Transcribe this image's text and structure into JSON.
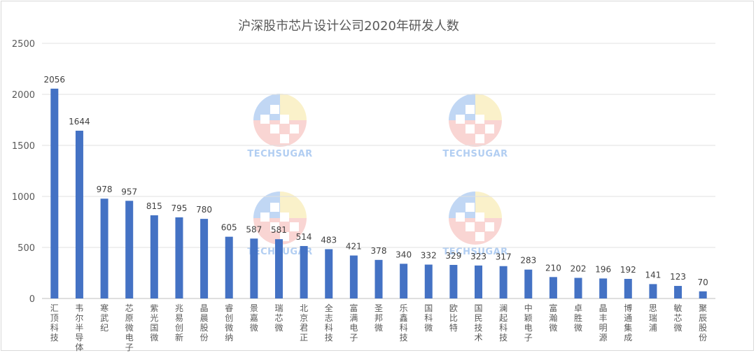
{
  "chart_data": {
    "type": "bar",
    "title": "沪深股市芯片设计公司2020年研发人数",
    "xlabel": "",
    "ylabel": "",
    "ylim": [
      0,
      2500
    ],
    "yticks": [
      0,
      500,
      1000,
      1500,
      2000,
      2500
    ],
    "grid": true,
    "legend": "none",
    "bar_color": "#4472C4",
    "categories": [
      "汇顶科技",
      "韦尔半导体",
      "寒武纪",
      "芯原微电子",
      "紫光国微",
      "兆易创新",
      "晶晨股份",
      "睿创微纳",
      "景嘉微",
      "瑞芯微",
      "北京君正",
      "全志科技",
      "富满电子",
      "圣邦微",
      "乐鑫科技",
      "国科微",
      "欧比特",
      "国民技术",
      "澜起科技",
      "中颖电子",
      "富瀚微",
      "卓胜微",
      "晶丰明源",
      "博通集成",
      "思瑞浦",
      "敏芯微",
      "聚辰股份"
    ],
    "values": [
      2056,
      1644,
      978,
      957,
      815,
      795,
      780,
      605,
      587,
      581,
      514,
      483,
      421,
      378,
      340,
      332,
      329,
      323,
      317,
      283,
      210,
      202,
      196,
      192,
      141,
      123,
      70
    ]
  },
  "watermark": {
    "text": "TECHSUGAR",
    "colors": [
      "#8fb8ec",
      "#f5b3b0",
      "#f7e7a0",
      "#ffffff"
    ]
  }
}
